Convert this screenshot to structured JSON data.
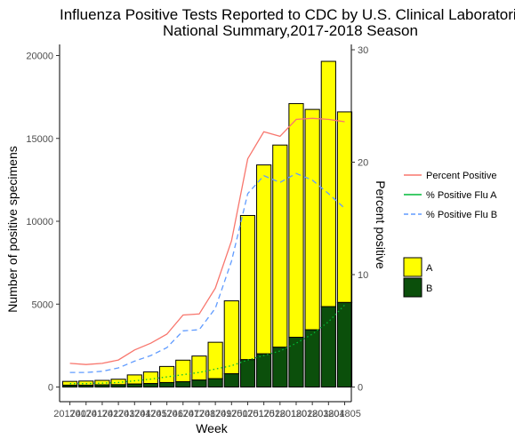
{
  "chart_data": {
    "type": "bar",
    "title_lines": [
      "Influenza Positive Tests Reported to CDC by U.S. Clinical Laboratories,",
      "National Summary,2017-2018 Season"
    ],
    "xlabel": "Week",
    "ylabel": "Number of positive specimens",
    "y2label": "Percent positive",
    "ylim": [
      0,
      21000
    ],
    "y2lim": [
      0,
      30
    ],
    "yticks": [
      0,
      5000,
      10000,
      15000,
      20000
    ],
    "y2ticks": [
      0,
      10,
      20,
      30
    ],
    "grid": false,
    "stacked": true,
    "categories": [
      "201740",
      "201741",
      "201742",
      "201743",
      "201744",
      "201745",
      "201746",
      "201747",
      "201748",
      "201749",
      "201750",
      "201751",
      "201752",
      "201801",
      "201802",
      "201803",
      "201804",
      "201805"
    ],
    "bar_series": [
      {
        "name": "A",
        "color": "#ffff00",
        "values": [
          230,
          250,
          270,
          330,
          550,
          700,
          970,
          1300,
          1450,
          2200,
          4400,
          8700,
          11400,
          12200,
          14100,
          13300,
          14800,
          11500
        ]
      },
      {
        "name": "B",
        "color": "#0b4f0b",
        "values": [
          110,
          110,
          130,
          140,
          180,
          210,
          270,
          320,
          420,
          500,
          800,
          1650,
          2000,
          2400,
          3000,
          3450,
          4850,
          5100
        ]
      }
    ],
    "line_series": [
      {
        "name": "Percent Positive",
        "color": "#f8766d",
        "dash": "solid",
        "values": [
          2.1,
          2.0,
          2.1,
          2.4,
          3.3,
          3.9,
          4.7,
          6.4,
          6.5,
          8.8,
          13.0,
          20.3,
          22.7,
          22.3,
          23.8,
          23.9,
          23.8,
          23.6
        ]
      },
      {
        "name": "% Positive Flu A",
        "color": "#00ba38",
        "dash": "dotted",
        "values": [
          0.3,
          0.3,
          0.35,
          0.4,
          0.55,
          0.7,
          0.9,
          1.1,
          1.3,
          1.6,
          1.9,
          2.4,
          2.8,
          3.2,
          3.9,
          4.7,
          5.8,
          7.3
        ]
      },
      {
        "name": "% Positive Flu B",
        "color": "#619cff",
        "dash": "dashed",
        "values": [
          1.3,
          1.3,
          1.4,
          1.7,
          2.3,
          2.8,
          3.5,
          5.0,
          5.1,
          7.0,
          11.2,
          17.2,
          18.8,
          18.2,
          19.0,
          18.4,
          17.2,
          15.9
        ]
      }
    ],
    "legend_placement": "right"
  }
}
